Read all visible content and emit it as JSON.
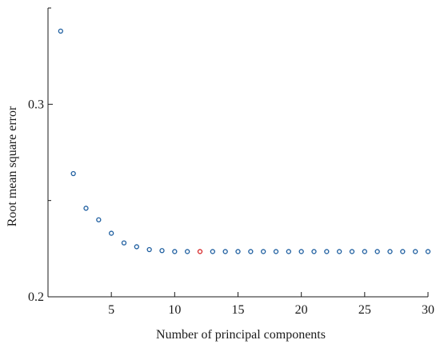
{
  "chart_data": {
    "type": "scatter",
    "title": "",
    "xlabel": "Number of principal components",
    "ylabel": "Root mean square error",
    "xlim": [
      0,
      30
    ],
    "ylim": [
      0.2,
      0.35
    ],
    "xticks": [
      5,
      10,
      15,
      20,
      25,
      30
    ],
    "yticks": [
      0.2,
      0.3
    ],
    "grid": false,
    "colors": {
      "points": "#1f5fa0",
      "highlight": "#d62728",
      "axis": "#1a1a1a"
    },
    "series": [
      {
        "x": [
          1,
          2,
          3,
          4,
          5,
          6,
          7,
          8,
          9,
          10,
          11,
          12,
          13,
          14,
          15,
          16,
          17,
          18,
          19,
          20,
          21,
          22,
          23,
          24,
          25,
          26,
          27,
          28,
          29,
          30
        ],
        "y": [
          0.338,
          0.264,
          0.246,
          0.24,
          0.233,
          0.228,
          0.226,
          0.2245,
          0.224,
          0.2235,
          0.2235,
          0.2235,
          0.2235,
          0.2235,
          0.2235,
          0.2235,
          0.2235,
          0.2235,
          0.2235,
          0.2235,
          0.2235,
          0.2235,
          0.2235,
          0.2235,
          0.2235,
          0.2235,
          0.2235,
          0.2235,
          0.2235,
          0.2235
        ],
        "highlight_x": 12
      }
    ]
  }
}
